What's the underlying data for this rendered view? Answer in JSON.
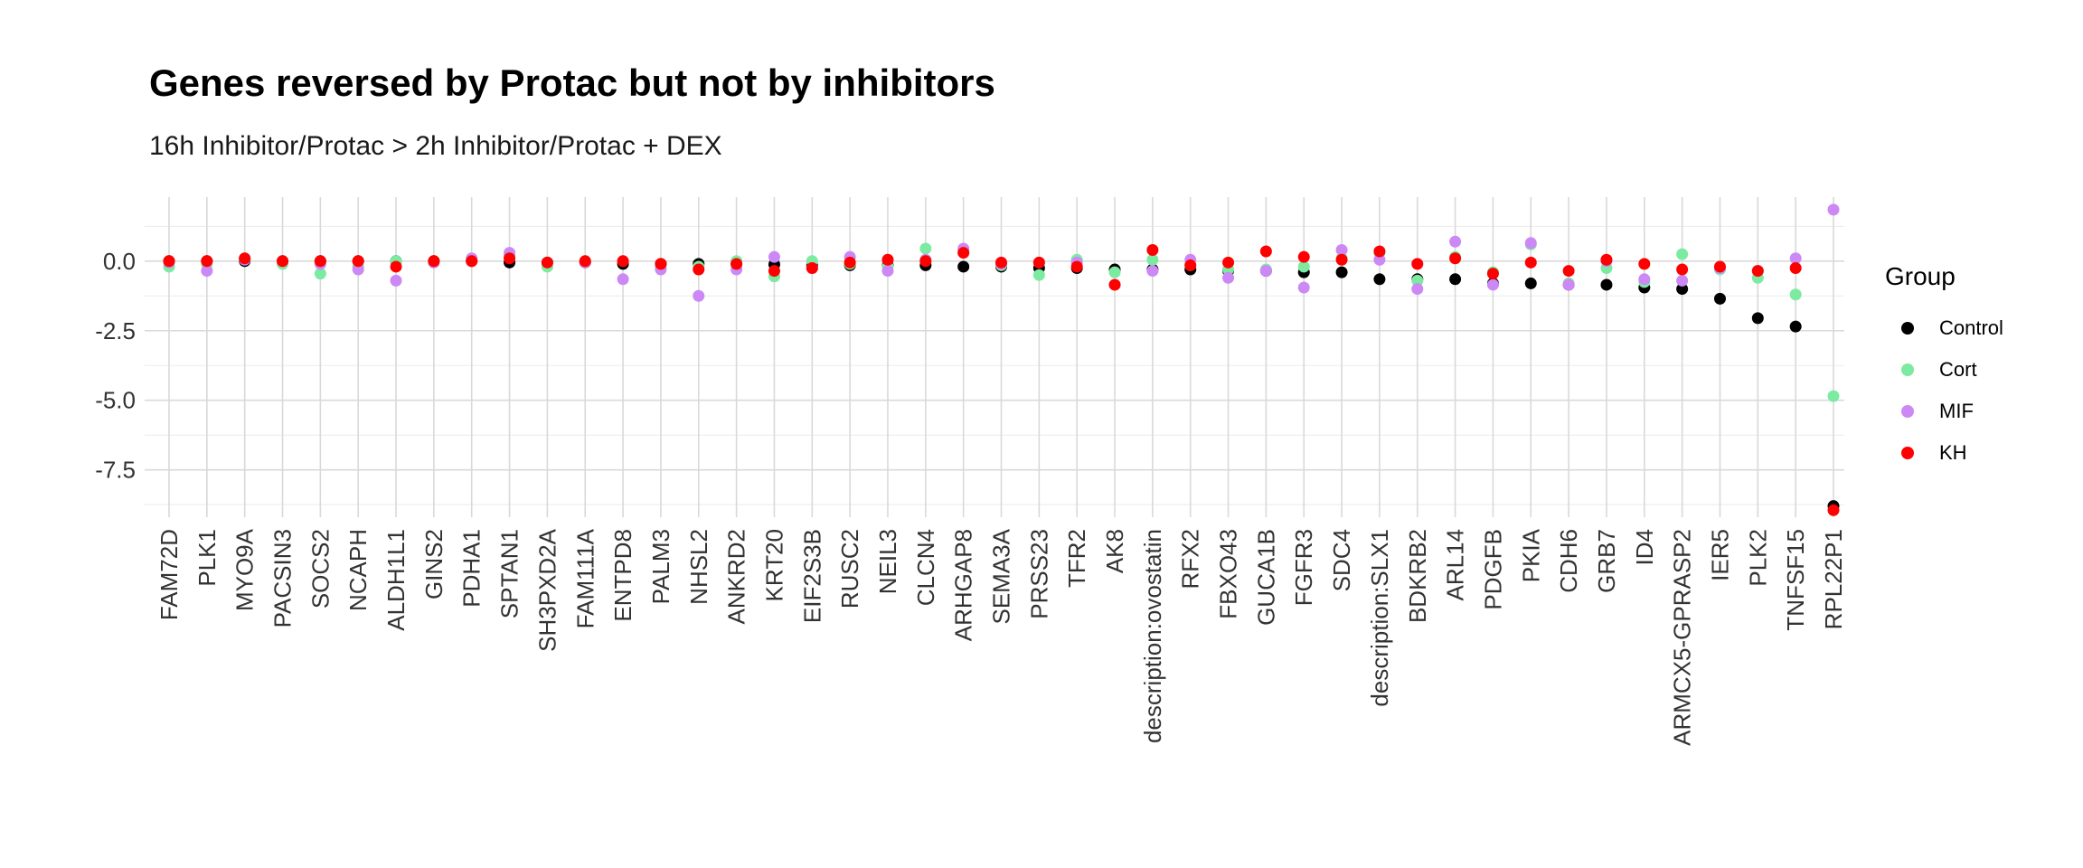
{
  "chart_data": {
    "type": "scatter",
    "title": "Genes reversed by Protac but not by inhibitors",
    "subtitle": "16h Inhibitor/Protac > 2h Inhibitor/Protac + DEX",
    "xlabel": "",
    "ylabel": "",
    "ylim": [
      -9.2,
      2.3
    ],
    "yticks": [
      "0.0",
      "-2.5",
      "-5.0",
      "-7.5"
    ],
    "grid": true,
    "legend_title": "Group",
    "legend_position": "right",
    "categories": [
      "FAM72D",
      "PLK1",
      "MYO9A",
      "PACSIN3",
      "SOCS2",
      "NCAPH",
      "ALDH1L1",
      "GINS2",
      "PDHA1",
      "SPTAN1",
      "SH3PXD2A",
      "FAM111A",
      "ENTPD8",
      "PALM3",
      "NHSL2",
      "ANKRD2",
      "KRT20",
      "EIF2S3B",
      "RUSC2",
      "NEIL3",
      "CLCN4",
      "ARHGAP8",
      "SEMA3A",
      "PRSS23",
      "TFR2",
      "AK8",
      "description:ovostatin",
      "RFX2",
      "FBXO43",
      "GUCA1B",
      "FGFR3",
      "SDC4",
      "description:SLX1",
      "BDKRB2",
      "ARL14",
      "PDGFB",
      "PKIA",
      "CDH6",
      "GRB7",
      "ID4",
      "ARMCX5-GPRASP2",
      "IER5",
      "PLK2",
      "TNFSF15",
      "RPL22P1"
    ],
    "series": [
      {
        "name": "Control",
        "color": "#000000",
        "values": [
          0.0,
          0.0,
          0.0,
          0.0,
          0.0,
          0.0,
          0.0,
          0.0,
          0.0,
          -0.05,
          -0.05,
          -0.05,
          -0.1,
          -0.1,
          -0.1,
          -0.1,
          -0.12,
          -0.15,
          -0.15,
          -0.15,
          -0.15,
          -0.2,
          -0.2,
          -0.25,
          -0.25,
          -0.3,
          -0.3,
          -0.3,
          -0.35,
          -0.35,
          -0.4,
          -0.4,
          -0.65,
          -0.65,
          -0.65,
          -0.8,
          -0.8,
          -0.85,
          -0.85,
          -0.95,
          -1.0,
          -1.35,
          -2.05,
          -2.35,
          -8.8
        ]
      },
      {
        "name": "Cort",
        "color": "#7ceaa0",
        "values": [
          -0.2,
          -0.1,
          0.1,
          -0.1,
          -0.45,
          -0.2,
          0.0,
          -0.05,
          0.0,
          0.2,
          -0.2,
          0.0,
          0.0,
          -0.2,
          -0.2,
          0.0,
          -0.55,
          0.0,
          -0.1,
          -0.2,
          0.45,
          0.4,
          -0.15,
          -0.5,
          0.05,
          -0.4,
          0.05,
          -0.15,
          -0.3,
          -0.3,
          -0.2,
          0.1,
          0.3,
          -0.7,
          0.15,
          -0.4,
          0.6,
          -0.8,
          -0.25,
          -0.75,
          0.25,
          -0.3,
          -0.6,
          -1.2,
          -4.85
        ]
      },
      {
        "name": "MIF",
        "color": "#cc88f5",
        "values": [
          -0.05,
          -0.35,
          0.05,
          0.0,
          -0.1,
          -0.3,
          -0.7,
          -0.05,
          0.1,
          0.3,
          -0.05,
          -0.05,
          -0.65,
          -0.3,
          -1.25,
          -0.3,
          0.15,
          -0.25,
          0.15,
          -0.35,
          0.05,
          0.45,
          -0.1,
          -0.05,
          -0.05,
          -0.85,
          -0.35,
          0.05,
          -0.6,
          -0.35,
          -0.95,
          0.4,
          0.05,
          -1.0,
          0.7,
          -0.85,
          0.65,
          -0.85,
          0.0,
          -0.65,
          -0.7,
          -0.25,
          -0.35,
          0.1,
          1.85
        ]
      },
      {
        "name": "KH",
        "color": "#ff0000",
        "values": [
          0.0,
          0.0,
          0.1,
          0.0,
          0.0,
          0.0,
          -0.2,
          0.0,
          0.0,
          0.1,
          -0.05,
          0.0,
          0.0,
          -0.1,
          -0.3,
          -0.1,
          -0.35,
          -0.25,
          -0.05,
          0.05,
          0.0,
          0.3,
          -0.05,
          -0.05,
          -0.2,
          -0.85,
          0.4,
          -0.15,
          -0.05,
          0.35,
          0.15,
          0.05,
          0.35,
          -0.1,
          0.1,
          -0.45,
          -0.05,
          -0.35,
          0.05,
          -0.1,
          -0.3,
          -0.2,
          -0.35,
          -0.25,
          -8.95
        ]
      }
    ]
  }
}
